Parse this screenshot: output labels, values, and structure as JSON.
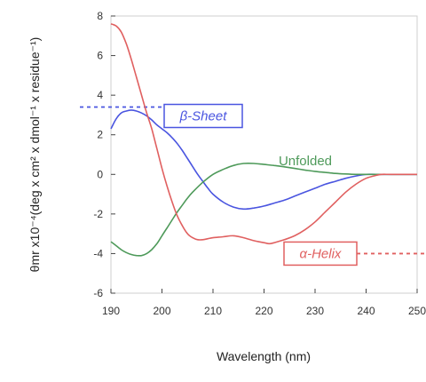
{
  "chart_data": {
    "type": "line",
    "xlabel": "Wavelength (nm)",
    "ylabel": "θmr x10⁻⁴(deg x cm² x dmol⁻¹ x residue⁻¹)",
    "xlim": [
      190,
      250
    ],
    "ylim": [
      -6,
      8
    ],
    "x_ticks": [
      "190",
      "200",
      "210",
      "220",
      "230",
      "240",
      "250"
    ],
    "y_ticks": [
      "8",
      "6",
      "4",
      "2",
      "0",
      "-2",
      "-4",
      "-6"
    ],
    "grid": false,
    "series": [
      {
        "name": "β-Sheet",
        "color": "#4a55e0",
        "x": [
          190,
          191,
          192,
          193,
          194,
          195,
          196,
          197,
          198,
          199,
          200,
          201,
          202,
          203,
          204,
          205,
          206,
          207,
          208,
          209,
          210,
          212,
          214,
          216,
          218,
          220,
          222,
          224,
          226,
          228,
          230,
          232,
          234,
          236,
          238,
          240,
          242,
          245,
          250
        ],
        "values": [
          2.3,
          2.8,
          3.1,
          3.2,
          3.25,
          3.2,
          3.1,
          2.95,
          2.75,
          2.5,
          2.3,
          2.1,
          1.85,
          1.55,
          1.2,
          0.8,
          0.4,
          0.0,
          -0.35,
          -0.7,
          -1.0,
          -1.4,
          -1.65,
          -1.75,
          -1.7,
          -1.6,
          -1.45,
          -1.3,
          -1.1,
          -0.9,
          -0.7,
          -0.5,
          -0.35,
          -0.2,
          -0.08,
          0.0,
          0.0,
          0.0,
          0.0
        ],
        "dashed_y": 3.4
      },
      {
        "name": "Unfolded",
        "color": "#4e9a5a",
        "x": [
          190,
          191,
          192,
          193,
          194,
          195,
          196,
          197,
          198,
          199,
          200,
          201,
          202,
          203,
          204,
          205,
          206,
          208,
          210,
          212,
          214,
          216,
          218,
          220,
          222,
          224,
          226,
          228,
          230,
          232,
          234,
          236,
          238,
          240,
          245,
          250
        ],
        "values": [
          -3.4,
          -3.6,
          -3.8,
          -3.95,
          -4.05,
          -4.1,
          -4.1,
          -4.0,
          -3.8,
          -3.5,
          -3.1,
          -2.7,
          -2.3,
          -1.9,
          -1.55,
          -1.2,
          -0.9,
          -0.4,
          0.0,
          0.25,
          0.45,
          0.55,
          0.55,
          0.5,
          0.45,
          0.38,
          0.3,
          0.22,
          0.15,
          0.1,
          0.05,
          0.02,
          0.0,
          0.0,
          0.0,
          0.0
        ]
      },
      {
        "name": "α-Helix",
        "color": "#e06060",
        "x": [
          190,
          191,
          192,
          193,
          194,
          195,
          196,
          197,
          198,
          199,
          200,
          201,
          202,
          203,
          204,
          205,
          206,
          207,
          208,
          209,
          210,
          212,
          214,
          216,
          218,
          220,
          221,
          222,
          224,
          226,
          228,
          230,
          232,
          234,
          236,
          238,
          240,
          242,
          243,
          245,
          250
        ],
        "values": [
          7.6,
          7.5,
          7.2,
          6.6,
          5.8,
          4.9,
          4.0,
          3.1,
          2.3,
          1.3,
          0.3,
          -0.6,
          -1.4,
          -2.1,
          -2.6,
          -3.0,
          -3.2,
          -3.3,
          -3.3,
          -3.25,
          -3.2,
          -3.15,
          -3.1,
          -3.2,
          -3.35,
          -3.45,
          -3.5,
          -3.45,
          -3.3,
          -3.1,
          -2.8,
          -2.4,
          -1.9,
          -1.4,
          -0.9,
          -0.5,
          -0.2,
          -0.05,
          0.0,
          0.0,
          0.0
        ],
        "dashed_y": -4.0
      }
    ],
    "annotations": [
      {
        "text": "β-Sheet",
        "color": "#4a55e0",
        "boxed": true
      },
      {
        "text": "Unfolded",
        "color": "#4e9a5a",
        "boxed": false
      },
      {
        "text": "α-Helix",
        "color": "#e06060",
        "boxed": true
      }
    ]
  }
}
